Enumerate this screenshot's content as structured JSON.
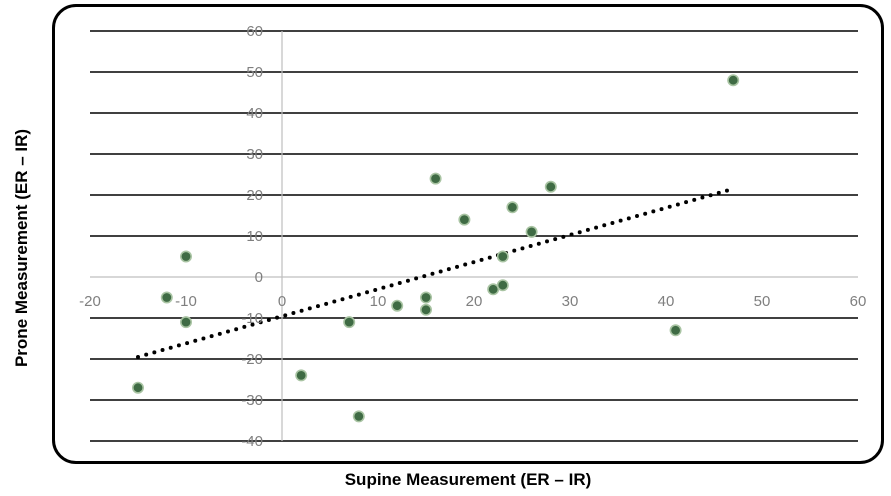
{
  "chart_data": {
    "type": "scatter",
    "xlabel": "Supine Measurement (ER – IR)",
    "ylabel": "Prone Measurement (ER – IR)",
    "xlim": [
      -20,
      60
    ],
    "ylim": [
      -40,
      60
    ],
    "xticks": [
      -20,
      -10,
      0,
      10,
      20,
      30,
      40,
      50,
      60
    ],
    "yticks": [
      -40,
      -30,
      -20,
      -10,
      0,
      10,
      20,
      30,
      40,
      50,
      60
    ],
    "grid": "horizontal",
    "legend": "none",
    "colors": {
      "point": "#3f6b44",
      "point_edge": "#a9c4a3",
      "grid": "#000000",
      "tick_text": "#7f7f7f",
      "axis_zero": "#bfbfbf"
    },
    "series": [
      {
        "points": [
          [
            47,
            48
          ],
          [
            28,
            22
          ],
          [
            16,
            24
          ],
          [
            24,
            17
          ],
          [
            19,
            14
          ],
          [
            26,
            11
          ],
          [
            23,
            5
          ],
          [
            -10,
            5
          ],
          [
            -12,
            -5
          ],
          [
            -10,
            -11
          ],
          [
            15,
            -5
          ],
          [
            15,
            -8
          ],
          [
            12,
            -7
          ],
          [
            7,
            -11
          ],
          [
            22,
            -3
          ],
          [
            23,
            -2
          ],
          [
            41,
            -13
          ],
          [
            2,
            -24
          ],
          [
            8,
            -34
          ],
          [
            -15,
            -27
          ]
        ]
      }
    ],
    "trendline": {
      "style": "dotted",
      "x": [
        -15,
        47
      ],
      "y": [
        -19.5,
        21.5
      ]
    }
  }
}
